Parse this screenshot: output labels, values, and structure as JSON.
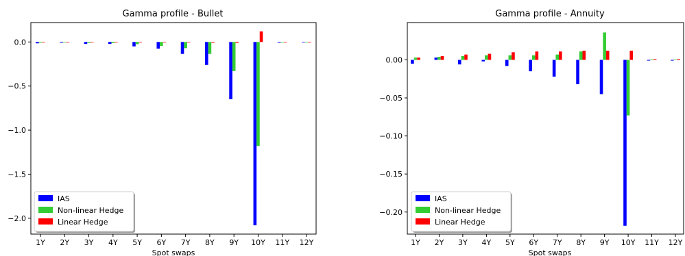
{
  "figure": {
    "legend": {
      "placement": "lower-left",
      "entries": [
        "IAS",
        "Non-linear Hedge",
        "Linear Hedge"
      ]
    }
  },
  "chart_data": [
    {
      "type": "bar",
      "title": "Gamma profile - Bullet",
      "xlabel": "Spot swaps",
      "ylabel": "",
      "ylim": [
        -2.18,
        0.22
      ],
      "yticks": [
        0.0,
        -0.5,
        -1.0,
        -1.5,
        -2.0
      ],
      "ytick_labels": [
        "0.0",
        "−0.5",
        "−1.0",
        "−1.5",
        "−2.0"
      ],
      "categories": [
        "1Y",
        "2Y",
        "3Y",
        "4Y",
        "5Y",
        "6Y",
        "7Y",
        "8Y",
        "9Y",
        "10Y",
        "11Y",
        "12Y"
      ],
      "grid": false,
      "legend": "lower-left",
      "series": [
        {
          "name": "IAS",
          "color": "#0000ff",
          "values": [
            -0.015,
            -0.008,
            -0.022,
            -0.022,
            -0.05,
            -0.075,
            -0.135,
            -0.26,
            -0.65,
            -2.08,
            -0.008,
            -0.006
          ]
        },
        {
          "name": "Non-linear Hedge",
          "color": "#33cc33",
          "values": [
            -0.008,
            -0.005,
            -0.01,
            -0.012,
            -0.025,
            -0.045,
            -0.07,
            -0.135,
            -0.33,
            -1.18,
            -0.004,
            -0.003
          ]
        },
        {
          "name": "Linear Hedge",
          "color": "#ff0000",
          "values": [
            -0.004,
            -0.004,
            -0.005,
            -0.006,
            -0.006,
            -0.006,
            -0.006,
            -0.008,
            -0.01,
            0.12,
            -0.003,
            -0.003
          ]
        }
      ]
    },
    {
      "type": "bar",
      "title": "Gamma profile - Annuity",
      "xlabel": "Spot swaps",
      "ylabel": "",
      "ylim": [
        -0.229,
        0.049
      ],
      "yticks": [
        0.0,
        -0.05,
        -0.1,
        -0.15,
        -0.2
      ],
      "ytick_labels": [
        "0.00",
        "−0.05",
        "−0.10",
        "−0.15",
        "−0.20"
      ],
      "categories": [
        "1Y",
        "2Y",
        "3Y",
        "4Y",
        "5Y",
        "6Y",
        "7Y",
        "8Y",
        "9Y",
        "10Y",
        "11Y",
        "12Y"
      ],
      "grid": false,
      "legend": "lower-left",
      "series": [
        {
          "name": "IAS",
          "color": "#0000ff",
          "values": [
            -0.005,
            0.003,
            -0.006,
            -0.002,
            -0.008,
            -0.015,
            -0.022,
            -0.032,
            -0.045,
            -0.218,
            -0.001,
            -0.001
          ]
        },
        {
          "name": "Non-linear Hedge",
          "color": "#33cc33",
          "values": [
            0.003,
            0.004,
            0.005,
            0.006,
            0.006,
            0.006,
            0.007,
            0.011,
            0.036,
            -0.073,
            0.0005,
            0.0005
          ]
        },
        {
          "name": "Linear Hedge",
          "color": "#ff0000",
          "values": [
            0.003,
            0.005,
            0.007,
            0.008,
            0.01,
            0.011,
            0.011,
            0.012,
            0.012,
            0.012,
            0.001,
            0.001
          ]
        }
      ]
    }
  ]
}
